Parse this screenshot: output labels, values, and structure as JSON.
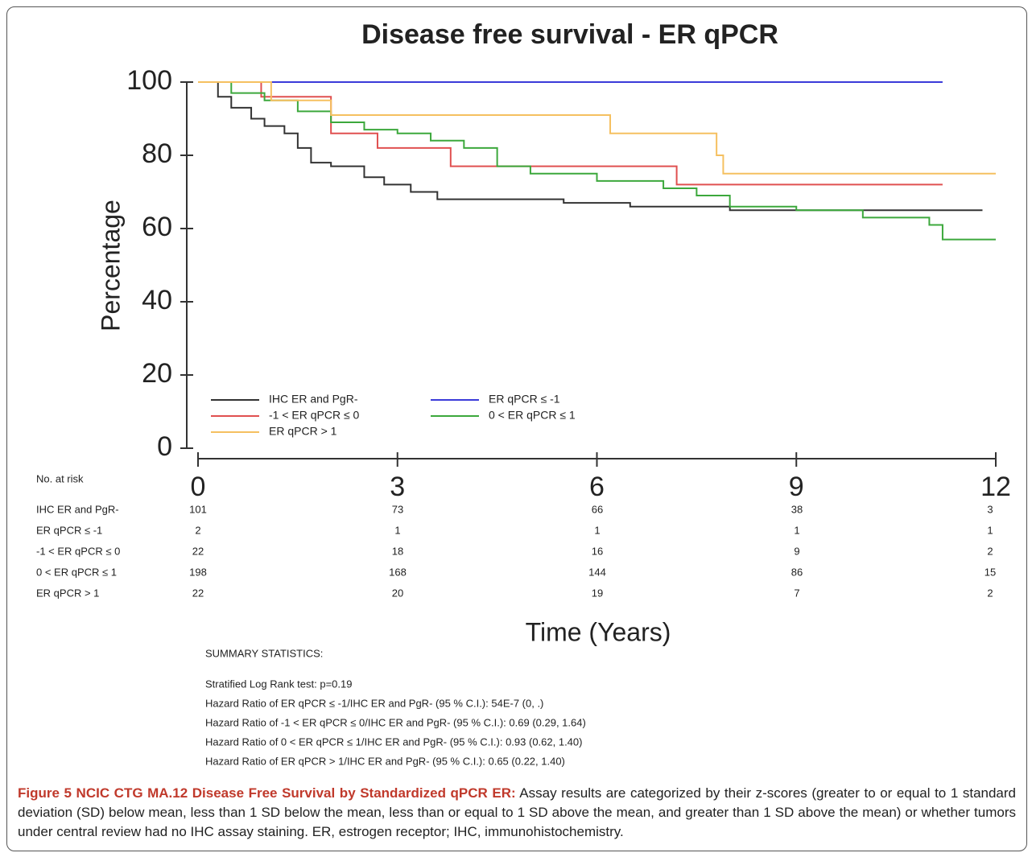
{
  "chart_data": {
    "type": "line",
    "step": "post",
    "title": "Disease free survival - ER qPCR",
    "ylabel": "Percentage",
    "xlabel": "Time (Years)",
    "xlim": [
      0,
      12
    ],
    "xticks": [
      0,
      3,
      6,
      9,
      12
    ],
    "ylim": [
      0,
      100
    ],
    "yticks": [
      0,
      20,
      40,
      60,
      80,
      100
    ],
    "series": [
      {
        "name": "IHC ER and PgR-",
        "color": "#333333",
        "x": [
          0,
          0.3,
          0.5,
          0.8,
          1.0,
          1.3,
          1.5,
          1.7,
          2.0,
          2.5,
          2.8,
          3.2,
          3.6,
          4.5,
          5.5,
          6.5,
          8.0,
          11.8
        ],
        "values": [
          100,
          96,
          93,
          90,
          88,
          86,
          82,
          78,
          77,
          74,
          72,
          70,
          68,
          68,
          67,
          66,
          65,
          65
        ]
      },
      {
        "name": "ER qPCR ≤ -1",
        "color": "#3b3bd9",
        "x": [
          0,
          11.2
        ],
        "values": [
          100,
          100
        ]
      },
      {
        "name": "-1 < ER qPCR ≤ 0",
        "color": "#e05050",
        "x": [
          0,
          0.95,
          2.0,
          2.7,
          3.8,
          7.2,
          11.2
        ],
        "values": [
          100,
          96,
          86,
          82,
          77,
          72,
          72
        ]
      },
      {
        "name": "0 < ER qPCR ≤ 1",
        "color": "#3ca83c",
        "x": [
          0,
          0.5,
          1.0,
          1.5,
          2.0,
          2.5,
          3.0,
          3.5,
          4.0,
          4.5,
          5.0,
          6.0,
          7.0,
          7.5,
          8.0,
          9.0,
          10.0,
          11.0,
          11.2,
          12.0
        ],
        "values": [
          100,
          97,
          95,
          92,
          89,
          87,
          86,
          84,
          82,
          77,
          75,
          73,
          71,
          69,
          66,
          65,
          63,
          61,
          57,
          57
        ]
      },
      {
        "name": "ER qPCR > 1",
        "color": "#f5c060",
        "x": [
          0,
          1.1,
          2.0,
          6.2,
          7.8,
          7.9,
          12.0
        ],
        "values": [
          100,
          95,
          91,
          86,
          80,
          75,
          75
        ]
      }
    ]
  },
  "risk_table": {
    "title": "No. at risk",
    "rows": [
      {
        "label": "IHC ER and PgR-",
        "values": [
          "101",
          "73",
          "66",
          "38",
          "3"
        ]
      },
      {
        "label": "ER qPCR ≤ -1",
        "values": [
          "2",
          "1",
          "1",
          "1",
          "1"
        ]
      },
      {
        "label": "-1 < ER qPCR ≤ 0",
        "values": [
          "22",
          "18",
          "16",
          "9",
          "2"
        ]
      },
      {
        "label": "0 < ER qPCR ≤ 1",
        "values": [
          "198",
          "168",
          "144",
          "86",
          "15"
        ]
      },
      {
        "label": "ER qPCR > 1",
        "values": [
          "22",
          "20",
          "19",
          "7",
          "2"
        ]
      }
    ]
  },
  "summary": {
    "title": "SUMMARY STATISTICS:",
    "lines": [
      "Stratified Log Rank test: p=0.19",
      "Hazard Ratio of ER qPCR ≤ -1/IHC ER and PgR- (95 % C.I.):  54E-7 (0, .)",
      "Hazard Ratio of -1 < ER qPCR ≤ 0/IHC ER and PgR- (95 % C.I.):   0.69 (0.29, 1.64)",
      "Hazard Ratio of 0 < ER qPCR ≤ 1/IHC ER and PgR- (95 % C.I.):  0.93 (0.62, 1.40)",
      "Hazard Ratio of ER qPCR > 1/IHC ER and PgR- (95 % C.I.):  0.65 (0.22, 1.40)"
    ]
  },
  "caption": {
    "label": "Figure 5 NCIC CTG MA.12 Disease Free Survival by Standardized qPCR ER:",
    "text": "Assay results are categorized by their z-scores (greater to or equal to 1 standard deviation (SD) below mean, less than 1 SD below the mean, less than or equal to 1 SD above the mean, and greater than 1 SD above the mean) or whether tumors under central review had no IHC assay staining. ER, estrogen receptor; IHC, immunohistochemistry."
  }
}
